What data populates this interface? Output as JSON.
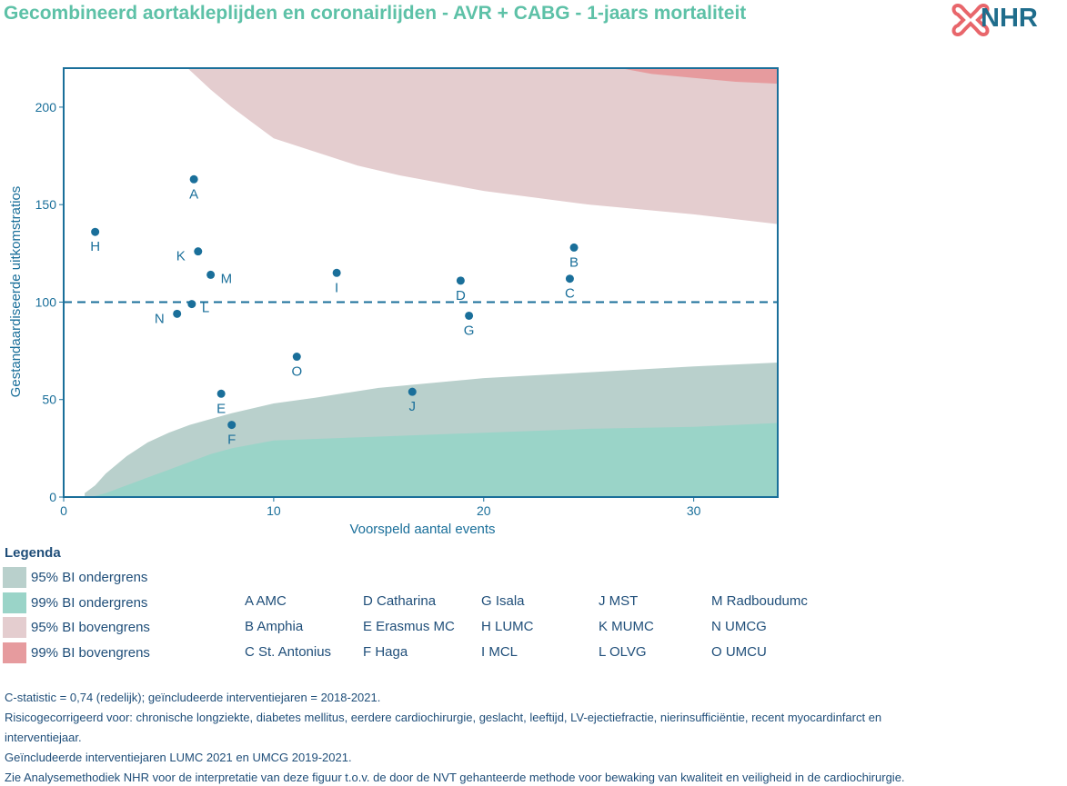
{
  "title": "Gecombineerd aortakleplijden en coronairlijden - AVR + CABG - 1-jaars mortaliteit",
  "logo_text": "NHR",
  "colors": {
    "ci95_lower": "#b9d0cc",
    "ci99_lower": "#9ad4c8",
    "ci95_upper": "#e4cdcf",
    "ci99_upper": "#e69b9e",
    "points": "#1a6f9a",
    "axis": "#1a6f9a",
    "title": "#5dc1a7",
    "text": "#1f4e79"
  },
  "chart_data": {
    "type": "scatter",
    "title": "",
    "xlabel": "Voorspeld aantal events",
    "ylabel": "Gestandaardiseerde uitkomstratios",
    "xlim": [
      0,
      34
    ],
    "ylim": [
      0,
      220
    ],
    "xticks": [
      "0",
      "10",
      "20",
      "30"
    ],
    "yticks": [
      "0",
      "50",
      "100",
      "150",
      "200"
    ],
    "reference_line": 100,
    "points": [
      {
        "label": "A",
        "x": 6.2,
        "y": 163
      },
      {
        "label": "B",
        "x": 24.3,
        "y": 128
      },
      {
        "label": "C",
        "x": 24.1,
        "y": 112
      },
      {
        "label": "D",
        "x": 18.9,
        "y": 111
      },
      {
        "label": "E",
        "x": 7.5,
        "y": 53
      },
      {
        "label": "F",
        "x": 8.0,
        "y": 37
      },
      {
        "label": "G",
        "x": 19.3,
        "y": 93
      },
      {
        "label": "H",
        "x": 1.5,
        "y": 136
      },
      {
        "label": "I",
        "x": 13.0,
        "y": 115
      },
      {
        "label": "J",
        "x": 16.6,
        "y": 54
      },
      {
        "label": "K",
        "x": 6.4,
        "y": 126
      },
      {
        "label": "L",
        "x": 6.1,
        "y": 99
      },
      {
        "label": "M",
        "x": 7.0,
        "y": 114
      },
      {
        "label": "N",
        "x": 5.4,
        "y": 94
      },
      {
        "label": "O",
        "x": 11.1,
        "y": 72
      }
    ],
    "bands": {
      "ci95_lower": [
        [
          1.0,
          2
        ],
        [
          1.5,
          6
        ],
        [
          2,
          12
        ],
        [
          3,
          21
        ],
        [
          4,
          28
        ],
        [
          5,
          33
        ],
        [
          6,
          37
        ],
        [
          7,
          40
        ],
        [
          8,
          43
        ],
        [
          10,
          48
        ],
        [
          12,
          51
        ],
        [
          15,
          56
        ],
        [
          20,
          61
        ],
        [
          25,
          64
        ],
        [
          30,
          67
        ],
        [
          34,
          69
        ]
      ],
      "ci99_lower": [
        [
          1.3,
          0
        ],
        [
          2,
          2
        ],
        [
          3,
          6
        ],
        [
          4,
          10
        ],
        [
          5,
          14
        ],
        [
          6,
          18
        ],
        [
          7,
          22
        ],
        [
          8,
          25
        ],
        [
          10,
          29
        ],
        [
          15,
          31
        ],
        [
          20,
          33
        ],
        [
          25,
          35
        ],
        [
          30,
          36
        ],
        [
          34,
          38
        ]
      ],
      "ci95_upper": [
        [
          5.9,
          220
        ],
        [
          6.5,
          214
        ],
        [
          7,
          209
        ],
        [
          8,
          200
        ],
        [
          9,
          192
        ],
        [
          10,
          184
        ],
        [
          12,
          177
        ],
        [
          14,
          170
        ],
        [
          16,
          165
        ],
        [
          20,
          157
        ],
        [
          25,
          150
        ],
        [
          30,
          145
        ],
        [
          34,
          140
        ]
      ],
      "ci99_upper": [
        [
          26.5,
          220
        ],
        [
          28,
          217
        ],
        [
          30,
          215
        ],
        [
          32,
          213
        ],
        [
          34,
          212
        ]
      ]
    }
  },
  "legend": {
    "title": "Legenda",
    "items": [
      {
        "label": "95% BI ondergrens",
        "color": "#b9d0cc"
      },
      {
        "label": "99% BI ondergrens",
        "color": "#9ad4c8"
      },
      {
        "label": "95% BI bovengrens",
        "color": "#e4cdcf"
      },
      {
        "label": "99% BI bovengrens",
        "color": "#e69b9e"
      }
    ],
    "hospitals": [
      [
        "A AMC",
        "B Amphia",
        "C St. Antonius"
      ],
      [
        "D Catharina",
        "E Erasmus MC",
        "F Haga"
      ],
      [
        "G Isala",
        "H LUMC",
        "I MCL"
      ],
      [
        "J MST",
        "K MUMC",
        "L OLVG"
      ],
      [
        "M Radboudumc",
        "N UMCG",
        "O UMCU"
      ]
    ]
  },
  "notes": [
    "C-statistic =  0,74 (redelijk); geïncludeerde interventiejaren = 2018-2021.",
    "Risicogecorrigeerd voor: chronische longziekte, diabetes mellitus, eerdere cardiochirurgie, geslacht, leeftijd, LV-ejectiefractie, nierinsufficiëntie, recent myocardinfarct en",
    "interventiejaar.",
    "Geïncludeerde interventiejaren LUMC 2021 en UMCG 2019-2021.",
    "Zie Analysemethodiek NHR voor de interpretatie van deze figuur t.o.v. de door de NVT gehanteerde methode voor bewaking van kwaliteit en veiligheid in de cardiochirurgie."
  ]
}
